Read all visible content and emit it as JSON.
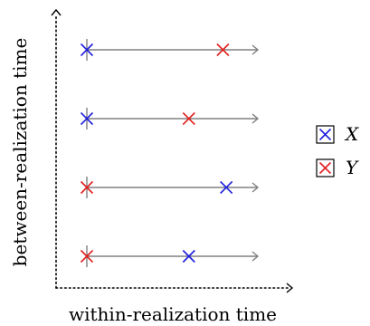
{
  "axes": {
    "x_label": "within-realization time",
    "y_label": "between-realization time"
  },
  "legend": [
    {
      "label": "X",
      "color": "#1f1fdc"
    },
    {
      "label": "Y",
      "color": "#e0201e"
    }
  ],
  "timelines": [
    {
      "first": "X",
      "second": "Y",
      "second_position": 0.8
    },
    {
      "first": "X",
      "second": "Y",
      "second_position": 0.6
    },
    {
      "first": "Y",
      "second": "X",
      "second_position": 0.82
    },
    {
      "first": "Y",
      "second": "X",
      "second_position": 0.6
    }
  ],
  "colors": {
    "line": "#808080",
    "axis": "#000000"
  }
}
